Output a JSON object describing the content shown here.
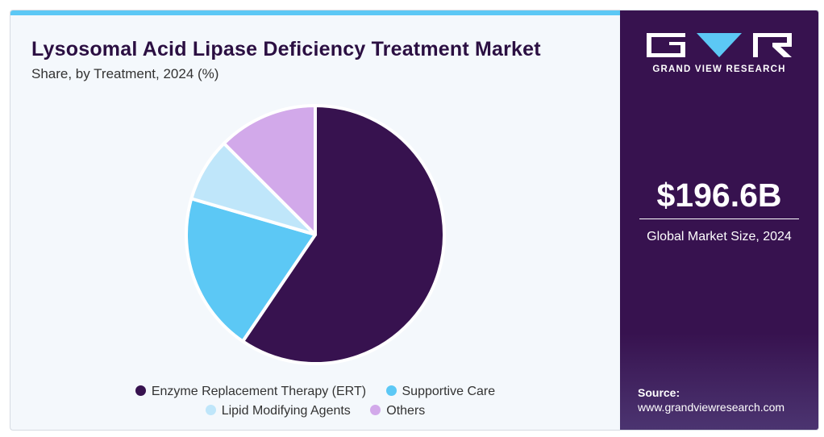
{
  "header": {
    "title": "Lysosomal Acid Lipase Deficiency Treatment Market",
    "subtitle": "Share, by Treatment, 2024 (%)"
  },
  "chart_data": {
    "type": "pie",
    "title": "Lysosomal Acid Lipase Deficiency Treatment Market",
    "subtitle": "Share, by Treatment, 2024 (%)",
    "categories": [
      "Enzyme Replacement Therapy (ERT)",
      "Supportive Care",
      "Lipid Modifying Agents",
      "Others"
    ],
    "values": [
      59.5,
      20.0,
      8.0,
      12.5
    ],
    "colors": [
      "#37124f",
      "#5cc8f5",
      "#bfe6fa",
      "#d2a9ea"
    ],
    "legend_position": "bottom"
  },
  "sidebar": {
    "brand": "GRAND VIEW RESEARCH",
    "market_value": "$196.6B",
    "market_label": "Global Market Size, 2024",
    "source_label": "Source:",
    "source_url": "www.grandviewresearch.com",
    "background_color": "#37124f"
  }
}
